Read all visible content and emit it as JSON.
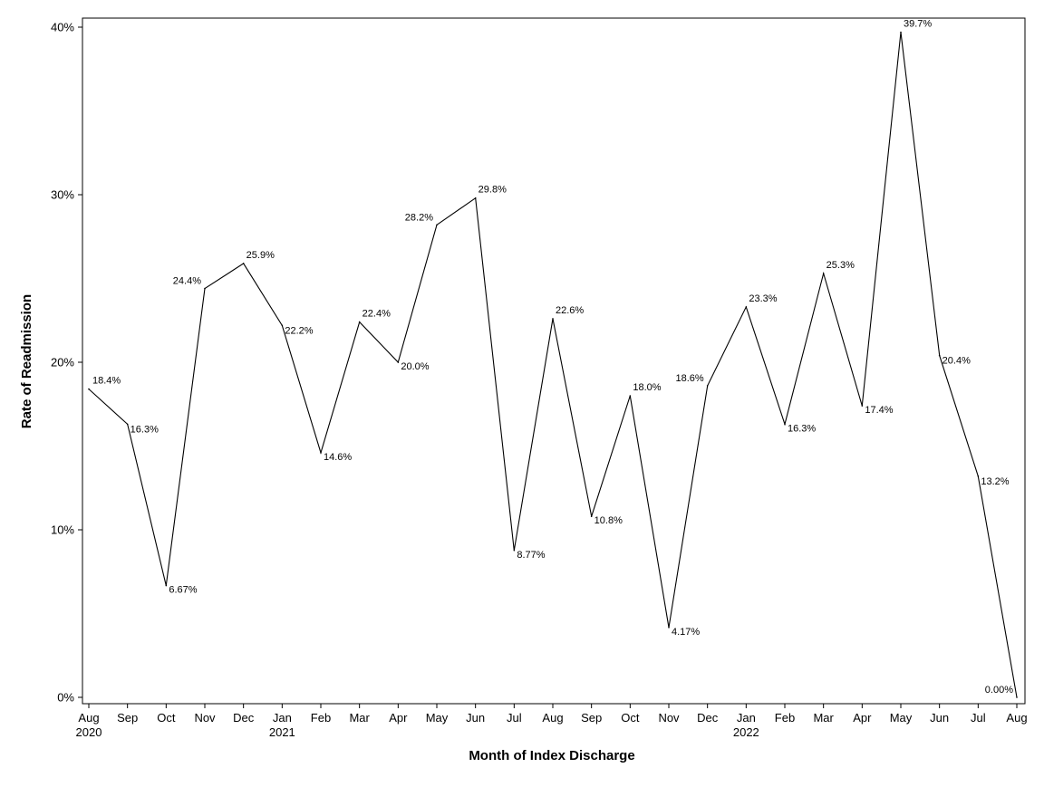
{
  "chart_data": {
    "type": "line",
    "title": "",
    "xlabel": "Month of Index Discharge",
    "ylabel": "Rate of Readmission",
    "ylim": [
      0,
      40.5
    ],
    "yticks": [
      0,
      10,
      20,
      30,
      40
    ],
    "ytick_labels": [
      "0%",
      "10%",
      "20%",
      "30%",
      "40%"
    ],
    "grid": false,
    "legend": "none",
    "categories": [
      "Aug",
      "Sep",
      "Oct",
      "Nov",
      "Dec",
      "Jan",
      "Feb",
      "Mar",
      "Apr",
      "May",
      "Jun",
      "Jul",
      "Aug",
      "Sep",
      "Oct",
      "Nov",
      "Dec",
      "Jan",
      "Feb",
      "Mar",
      "Apr",
      "May",
      "Jun",
      "Jul",
      "Aug"
    ],
    "year_labels": [
      {
        "index": 0,
        "label": "2020"
      },
      {
        "index": 5,
        "label": "2021"
      },
      {
        "index": 17,
        "label": "2022"
      }
    ],
    "series": [
      {
        "name": "Rate of Readmission",
        "color": "#000000",
        "values": [
          18.4,
          16.3,
          6.67,
          24.4,
          25.9,
          22.2,
          14.6,
          22.4,
          20.0,
          28.2,
          29.8,
          8.77,
          22.6,
          10.8,
          18.0,
          4.17,
          18.6,
          23.3,
          16.3,
          25.3,
          17.4,
          39.7,
          20.4,
          13.2,
          0.0
        ],
        "labels": [
          "18.4%",
          "16.3%",
          "6.67%",
          "24.4%",
          "25.9%",
          "22.2%",
          "14.6%",
          "22.4%",
          "20.0%",
          "28.2%",
          "29.8%",
          "8.77%",
          "22.6%",
          "10.8%",
          "18.0%",
          "4.17%",
          "18.6%",
          "23.3%",
          "16.3%",
          "25.3%",
          "17.4%",
          "39.7%",
          "20.4%",
          "13.2%",
          "0.00%"
        ]
      }
    ]
  }
}
